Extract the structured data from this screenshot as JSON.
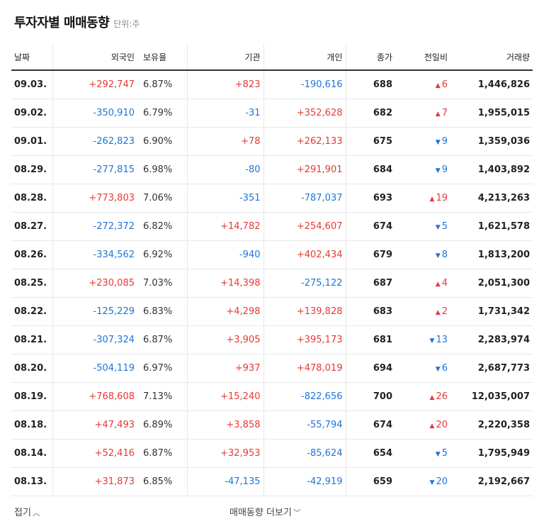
{
  "header": {
    "title": "투자자별 매매동향",
    "unit": "단위:주"
  },
  "columns": {
    "date": "날짜",
    "foreign": "외국인",
    "holding": "보유율",
    "institution": "기관",
    "individual": "개인",
    "close": "종가",
    "change": "전일비",
    "volume": "거래량"
  },
  "rows": [
    {
      "date": "09.03.",
      "foreign": "+292,747",
      "holding": "6.87%",
      "institution": "+823",
      "individual": "-190,616",
      "close": "688",
      "change_dir": "up",
      "change": "6",
      "volume": "1,446,826"
    },
    {
      "date": "09.02.",
      "foreign": "-350,910",
      "holding": "6.79%",
      "institution": "-31",
      "individual": "+352,628",
      "close": "682",
      "change_dir": "up",
      "change": "7",
      "volume": "1,955,015"
    },
    {
      "date": "09.01.",
      "foreign": "-262,823",
      "holding": "6.90%",
      "institution": "+78",
      "individual": "+262,133",
      "close": "675",
      "change_dir": "down",
      "change": "9",
      "volume": "1,359,036"
    },
    {
      "date": "08.29.",
      "foreign": "-277,815",
      "holding": "6.98%",
      "institution": "-80",
      "individual": "+291,901",
      "close": "684",
      "change_dir": "down",
      "change": "9",
      "volume": "1,403,892"
    },
    {
      "date": "08.28.",
      "foreign": "+773,803",
      "holding": "7.06%",
      "institution": "-351",
      "individual": "-787,037",
      "close": "693",
      "change_dir": "up",
      "change": "19",
      "volume": "4,213,263"
    },
    {
      "date": "08.27.",
      "foreign": "-272,372",
      "holding": "6.82%",
      "institution": "+14,782",
      "individual": "+254,607",
      "close": "674",
      "change_dir": "down",
      "change": "5",
      "volume": "1,621,578"
    },
    {
      "date": "08.26.",
      "foreign": "-334,562",
      "holding": "6.92%",
      "institution": "-940",
      "individual": "+402,434",
      "close": "679",
      "change_dir": "down",
      "change": "8",
      "volume": "1,813,200"
    },
    {
      "date": "08.25.",
      "foreign": "+230,085",
      "holding": "7.03%",
      "institution": "+14,398",
      "individual": "-275,122",
      "close": "687",
      "change_dir": "up",
      "change": "4",
      "volume": "2,051,300"
    },
    {
      "date": "08.22.",
      "foreign": "-125,229",
      "holding": "6.83%",
      "institution": "+4,298",
      "individual": "+139,828",
      "close": "683",
      "change_dir": "up",
      "change": "2",
      "volume": "1,731,342"
    },
    {
      "date": "08.21.",
      "foreign": "-307,324",
      "holding": "6.87%",
      "institution": "+3,905",
      "individual": "+395,173",
      "close": "681",
      "change_dir": "down",
      "change": "13",
      "volume": "2,283,974"
    },
    {
      "date": "08.20.",
      "foreign": "-504,119",
      "holding": "6.97%",
      "institution": "+937",
      "individual": "+478,019",
      "close": "694",
      "change_dir": "down",
      "change": "6",
      "volume": "2,687,773"
    },
    {
      "date": "08.19.",
      "foreign": "+768,608",
      "holding": "7.13%",
      "institution": "+15,240",
      "individual": "-822,656",
      "close": "700",
      "change_dir": "up",
      "change": "26",
      "volume": "12,035,007"
    },
    {
      "date": "08.18.",
      "foreign": "+47,493",
      "holding": "6.89%",
      "institution": "+3,858",
      "individual": "-55,794",
      "close": "674",
      "change_dir": "up",
      "change": "20",
      "volume": "2,220,358"
    },
    {
      "date": "08.14.",
      "foreign": "+52,416",
      "holding": "6.87%",
      "institution": "+32,953",
      "individual": "-85,624",
      "close": "654",
      "change_dir": "down",
      "change": "5",
      "volume": "1,795,949"
    },
    {
      "date": "08.13.",
      "foreign": "+31,873",
      "holding": "6.85%",
      "institution": "-47,135",
      "individual": "-42,919",
      "close": "659",
      "change_dir": "down",
      "change": "20",
      "volume": "2,192,667"
    }
  ],
  "footer": {
    "collapse_label": "접기",
    "more_label": "매매동향 더보기"
  },
  "colors": {
    "up": "#e53935",
    "down": "#1e74d8"
  }
}
